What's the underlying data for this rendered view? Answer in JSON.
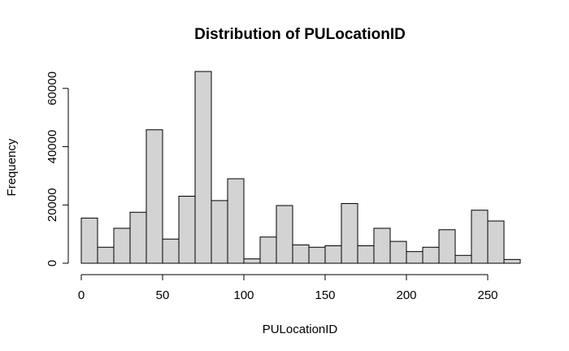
{
  "chart_data": {
    "type": "bar",
    "title": "Distribution of PULocationID",
    "xlabel": "PULocationID",
    "ylabel": "Frequency",
    "bin_width": 10,
    "bins": [
      {
        "x0": 0,
        "x1": 10,
        "value": 15500
      },
      {
        "x0": 10,
        "x1": 20,
        "value": 5500
      },
      {
        "x0": 20,
        "x1": 30,
        "value": 12000
      },
      {
        "x0": 30,
        "x1": 40,
        "value": 17500
      },
      {
        "x0": 40,
        "x1": 50,
        "value": 45800
      },
      {
        "x0": 50,
        "x1": 60,
        "value": 8300
      },
      {
        "x0": 60,
        "x1": 70,
        "value": 23000
      },
      {
        "x0": 70,
        "x1": 80,
        "value": 65800
      },
      {
        "x0": 80,
        "x1": 90,
        "value": 21500
      },
      {
        "x0": 90,
        "x1": 100,
        "value": 29000
      },
      {
        "x0": 100,
        "x1": 110,
        "value": 1500
      },
      {
        "x0": 110,
        "x1": 120,
        "value": 9000
      },
      {
        "x0": 120,
        "x1": 130,
        "value": 19800
      },
      {
        "x0": 130,
        "x1": 140,
        "value": 6300
      },
      {
        "x0": 140,
        "x1": 150,
        "value": 5500
      },
      {
        "x0": 150,
        "x1": 160,
        "value": 6000
      },
      {
        "x0": 160,
        "x1": 170,
        "value": 20500
      },
      {
        "x0": 170,
        "x1": 180,
        "value": 6000
      },
      {
        "x0": 180,
        "x1": 190,
        "value": 12000
      },
      {
        "x0": 190,
        "x1": 200,
        "value": 7500
      },
      {
        "x0": 200,
        "x1": 210,
        "value": 4000
      },
      {
        "x0": 210,
        "x1": 220,
        "value": 5500
      },
      {
        "x0": 220,
        "x1": 230,
        "value": 11500
      },
      {
        "x0": 230,
        "x1": 240,
        "value": 2700
      },
      {
        "x0": 240,
        "x1": 250,
        "value": 18200
      },
      {
        "x0": 250,
        "x1": 260,
        "value": 14500
      },
      {
        "x0": 260,
        "x1": 270,
        "value": 1300
      }
    ],
    "xlim": [
      0,
      270
    ],
    "ylim": [
      0,
      65800
    ],
    "x_ticks": [
      0,
      50,
      100,
      150,
      200,
      250
    ],
    "y_ticks": [
      0,
      20000,
      40000,
      60000
    ],
    "grid": false,
    "bar_color": "#d3d3d3",
    "edge_color": "#000000"
  }
}
